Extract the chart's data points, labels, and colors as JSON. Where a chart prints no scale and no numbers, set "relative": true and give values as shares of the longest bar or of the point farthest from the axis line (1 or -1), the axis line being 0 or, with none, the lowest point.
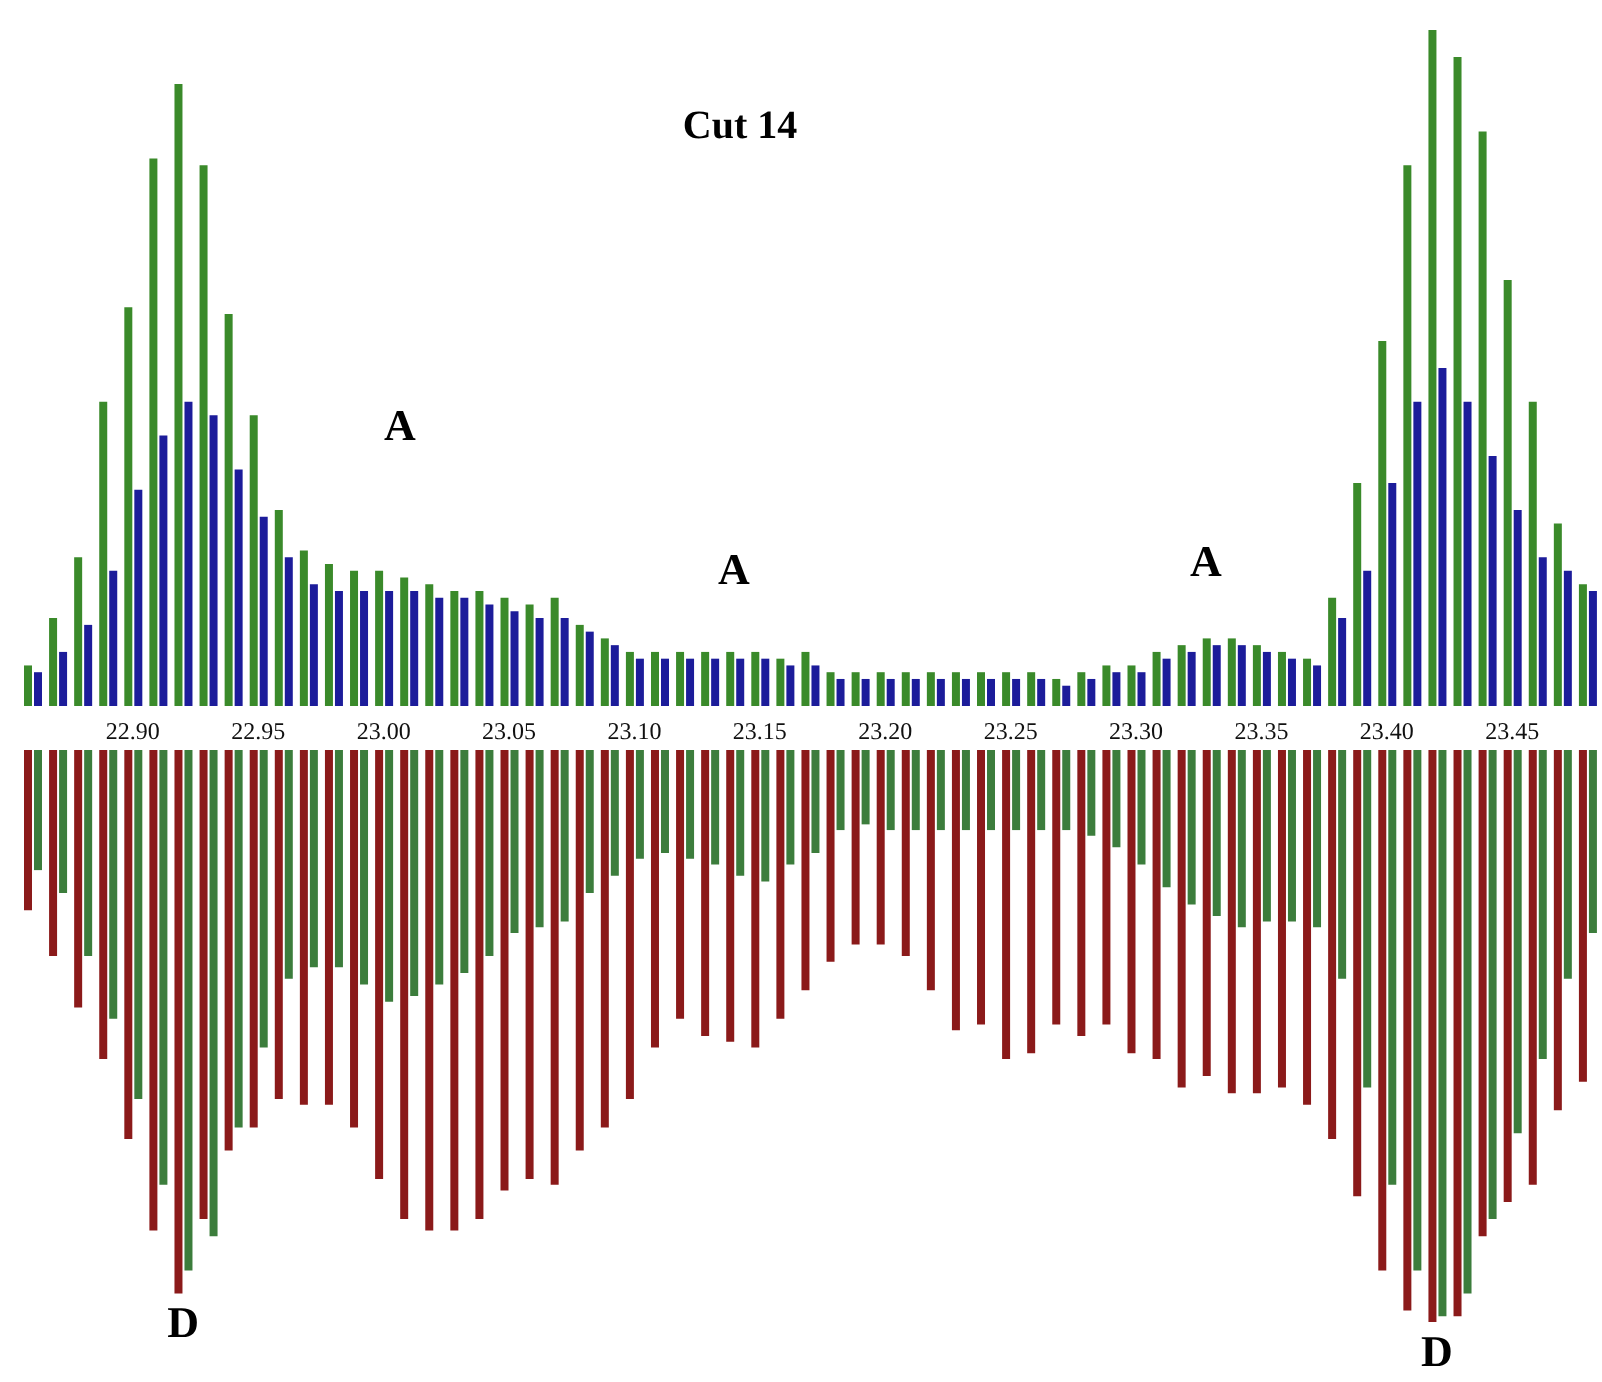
{
  "chart_data": [
    {
      "type": "bar",
      "title": "Cut 14",
      "relative": true,
      "xlim": [
        22.855,
        23.485
      ],
      "xticks": [
        {
          "value": 22.9,
          "label": "22.90"
        },
        {
          "value": 22.95,
          "label": "22.95"
        },
        {
          "value": 23.0,
          "label": "23.00"
        },
        {
          "value": 23.05,
          "label": "23.05"
        },
        {
          "value": 23.1,
          "label": "23.10"
        },
        {
          "value": 23.15,
          "label": "23.15"
        },
        {
          "value": 23.2,
          "label": "23.20"
        },
        {
          "value": 23.25,
          "label": "23.25"
        },
        {
          "value": 23.3,
          "label": "23.30"
        },
        {
          "value": 23.35,
          "label": "23.35"
        },
        {
          "value": 23.4,
          "label": "23.40"
        },
        {
          "value": 23.45,
          "label": "23.45"
        }
      ],
      "x": [
        22.86,
        22.87,
        22.88,
        22.89,
        22.9,
        22.91,
        22.92,
        22.93,
        22.94,
        22.95,
        22.96,
        22.97,
        22.98,
        22.99,
        23.0,
        23.01,
        23.02,
        23.03,
        23.04,
        23.05,
        23.06,
        23.07,
        23.08,
        23.09,
        23.1,
        23.11,
        23.12,
        23.13,
        23.14,
        23.15,
        23.16,
        23.17,
        23.18,
        23.19,
        23.2,
        23.21,
        23.22,
        23.23,
        23.24,
        23.25,
        23.26,
        23.27,
        23.28,
        23.29,
        23.3,
        23.31,
        23.32,
        23.33,
        23.34,
        23.35,
        23.36,
        23.37,
        23.38,
        23.39,
        23.4,
        23.41,
        23.42,
        23.43,
        23.44,
        23.45,
        23.46,
        23.47,
        23.48
      ],
      "series": [
        {
          "color": "#3a8a2a",
          "values": [
            0.06,
            0.13,
            0.22,
            0.45,
            0.59,
            0.81,
            0.92,
            0.8,
            0.58,
            0.43,
            0.29,
            0.23,
            0.21,
            0.2,
            0.2,
            0.19,
            0.18,
            0.17,
            0.17,
            0.16,
            0.15,
            0.16,
            0.12,
            0.1,
            0.08,
            0.08,
            0.08,
            0.08,
            0.08,
            0.08,
            0.07,
            0.08,
            0.05,
            0.05,
            0.05,
            0.05,
            0.05,
            0.05,
            0.05,
            0.05,
            0.05,
            0.04,
            0.05,
            0.06,
            0.06,
            0.08,
            0.09,
            0.1,
            0.1,
            0.09,
            0.08,
            0.07,
            0.16,
            0.33,
            0.54,
            0.8,
            1,
            0.96,
            0.85,
            0.63,
            0.45,
            0.27,
            0.18
          ]
        },
        {
          "color": "#1c1c9a",
          "values": [
            0.05,
            0.08,
            0.12,
            0.2,
            0.32,
            0.4,
            0.45,
            0.43,
            0.35,
            0.28,
            0.22,
            0.18,
            0.17,
            0.17,
            0.17,
            0.17,
            0.16,
            0.16,
            0.15,
            0.14,
            0.13,
            0.13,
            0.11,
            0.09,
            0.07,
            0.07,
            0.07,
            0.07,
            0.07,
            0.07,
            0.06,
            0.06,
            0.04,
            0.04,
            0.04,
            0.04,
            0.04,
            0.04,
            0.04,
            0.04,
            0.04,
            0.03,
            0.04,
            0.05,
            0.05,
            0.07,
            0.08,
            0.09,
            0.09,
            0.08,
            0.07,
            0.06,
            0.13,
            0.2,
            0.33,
            0.45,
            0.5,
            0.45,
            0.37,
            0.29,
            0.22,
            0.2,
            0.17
          ]
        }
      ],
      "annotations": [
        "A",
        "A",
        "A"
      ]
    },
    {
      "type": "bar",
      "relative": true,
      "xlim": [
        22.855,
        23.485
      ],
      "tick_labels": false,
      "x": [
        22.86,
        22.87,
        22.88,
        22.89,
        22.9,
        22.91,
        22.92,
        22.93,
        22.94,
        22.95,
        22.96,
        22.97,
        22.98,
        22.99,
        23.0,
        23.01,
        23.02,
        23.03,
        23.04,
        23.05,
        23.06,
        23.07,
        23.08,
        23.09,
        23.1,
        23.11,
        23.12,
        23.13,
        23.14,
        23.15,
        23.16,
        23.17,
        23.18,
        23.19,
        23.2,
        23.21,
        23.22,
        23.23,
        23.24,
        23.25,
        23.26,
        23.27,
        23.28,
        23.29,
        23.3,
        23.31,
        23.32,
        23.33,
        23.34,
        23.35,
        23.36,
        23.37,
        23.38,
        23.39,
        23.4,
        23.41,
        23.42,
        23.43,
        23.44,
        23.45,
        23.46,
        23.47,
        23.48
      ],
      "series": [
        {
          "color": "#8b1a1a",
          "values": [
            -0.28,
            -0.36,
            -0.45,
            -0.54,
            -0.68,
            -0.84,
            -0.95,
            -0.82,
            -0.7,
            -0.66,
            -0.61,
            -0.62,
            -0.62,
            -0.66,
            -0.75,
            -0.82,
            -0.84,
            -0.84,
            -0.82,
            -0.77,
            -0.75,
            -0.76,
            -0.7,
            -0.66,
            -0.61,
            -0.52,
            -0.47,
            -0.5,
            -0.51,
            -0.52,
            -0.47,
            -0.42,
            -0.37,
            -0.34,
            -0.34,
            -0.36,
            -0.42,
            -0.49,
            -0.48,
            -0.54,
            -0.53,
            -0.48,
            -0.5,
            -0.48,
            -0.53,
            -0.54,
            -0.59,
            -0.57,
            -0.6,
            -0.6,
            -0.59,
            -0.62,
            -0.68,
            -0.78,
            -0.91,
            -0.98,
            -1,
            -0.99,
            -0.85,
            -0.79,
            -0.76,
            -0.63,
            -0.58
          ]
        },
        {
          "color": "#3c7d3c",
          "values": [
            -0.21,
            -0.25,
            -0.36,
            -0.47,
            -0.61,
            -0.76,
            -0.91,
            -0.85,
            -0.66,
            -0.52,
            -0.4,
            -0.38,
            -0.38,
            -0.41,
            -0.44,
            -0.43,
            -0.41,
            -0.39,
            -0.36,
            -0.32,
            -0.31,
            -0.3,
            -0.25,
            -0.22,
            -0.19,
            -0.18,
            -0.19,
            -0.2,
            -0.22,
            -0.23,
            -0.2,
            -0.18,
            -0.14,
            -0.13,
            -0.14,
            -0.14,
            -0.14,
            -0.14,
            -0.14,
            -0.14,
            -0.14,
            -0.14,
            -0.15,
            -0.17,
            -0.2,
            -0.24,
            -0.27,
            -0.29,
            -0.31,
            -0.3,
            -0.3,
            -0.31,
            -0.4,
            -0.59,
            -0.76,
            -0.91,
            -0.99,
            -0.95,
            -0.82,
            -0.67,
            -0.54,
            -0.4,
            -0.32
          ]
        }
      ],
      "annotations": [
        {
          "text": "D",
          "x": 22.92,
          "y": -0.95
        },
        {
          "text": "D",
          "x": 23.42,
          "y": -1
        }
      ]
    }
  ]
}
